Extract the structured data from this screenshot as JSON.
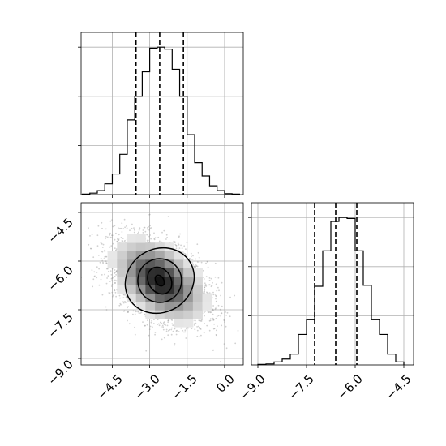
{
  "chart_data": [
    {
      "type": "histogram",
      "panel": "marginal-param-1",
      "title": "",
      "xlabel": "",
      "ylabel": "",
      "xlim": [
        -5.75,
        0.75
      ],
      "grid": true,
      "bin_edges": [
        -5.7,
        -5.4,
        -5.1,
        -4.8,
        -4.5,
        -4.2,
        -3.9,
        -3.6,
        -3.3,
        -3.0,
        -2.7,
        -2.4,
        -2.1,
        -1.8,
        -1.5,
        -1.2,
        -0.9,
        -0.6,
        -0.3,
        0.0,
        0.3,
        0.6
      ],
      "counts": [
        1,
        3,
        8,
        22,
        42,
        82,
        152,
        200,
        250,
        298,
        300,
        296,
        255,
        200,
        122,
        65,
        38,
        18,
        8,
        2,
        1
      ],
      "quantiles": [
        -3.55,
        -2.6,
        -1.65
      ],
      "xticks": [
        -4.5,
        -3.0,
        -1.5,
        0.0
      ],
      "xtick_labels": [
        "−4.5",
        "−3.0",
        "−1.5",
        "0.0"
      ]
    },
    {
      "type": "histogram",
      "panel": "marginal-param-2",
      "title": "",
      "xlabel": "",
      "ylabel": "",
      "xlim": [
        -9.2,
        -4.2
      ],
      "grid": true,
      "bin_edges": [
        -9.0,
        -8.75,
        -8.5,
        -8.25,
        -8.0,
        -7.75,
        -7.5,
        -7.25,
        -7.0,
        -6.75,
        -6.5,
        -6.25,
        -6.0,
        -5.75,
        -5.5,
        -5.25,
        -5.0,
        -4.75,
        -4.5
      ],
      "counts": [
        1,
        2,
        6,
        12,
        22,
        62,
        92,
        160,
        232,
        292,
        300,
        298,
        232,
        162,
        92,
        62,
        22,
        6
      ],
      "quantiles": [
        -7.25,
        -6.6,
        -5.95
      ],
      "xticks": [
        -9.0,
        -7.5,
        -6.0,
        -4.5
      ],
      "xtick_labels": [
        "−9.0",
        "−7.5",
        "−6.0",
        "−4.5"
      ]
    },
    {
      "type": "scatter",
      "panel": "joint-2d",
      "title": "",
      "xlabel": "",
      "ylabel": "",
      "xlim": [
        -5.75,
        0.75
      ],
      "ylim": [
        -9.2,
        -4.2
      ],
      "grid": true,
      "center": [
        -2.6,
        -6.6
      ],
      "sd": [
        0.95,
        0.65
      ],
      "correlation": -0.45,
      "point_count": 4000,
      "contour_levels": [
        {
          "x": -2.6,
          "y": -6.6,
          "rx": 0.32,
          "ry": 0.36,
          "angle": -32
        },
        {
          "x": -2.6,
          "y": -6.6,
          "rx": 0.9,
          "ry": 0.88,
          "angle": -32
        },
        {
          "x": -2.6,
          "y": -6.6,
          "rx": 1.75,
          "ry": 1.35,
          "angle": -32
        },
        {
          "x": -2.6,
          "y": -6.6,
          "rx": 2.85,
          "ry": 1.95,
          "angle": -32
        }
      ],
      "xticks": [
        -4.5,
        -3.0,
        -1.5,
        0.0
      ],
      "xtick_labels": [
        "−4.5",
        "−3.0",
        "−1.5",
        "0.0"
      ],
      "yticks": [
        -4.5,
        -6.0,
        -7.5,
        -9.0
      ],
      "ytick_labels": [
        "−4.5",
        "−6.0",
        "−7.5",
        "−9.0"
      ]
    }
  ]
}
